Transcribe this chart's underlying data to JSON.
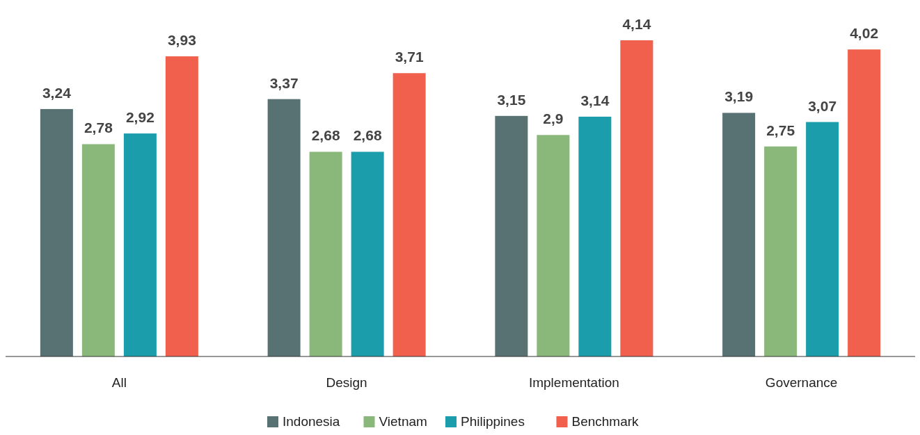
{
  "chart_data": {
    "type": "bar",
    "categories": [
      "All",
      "Design",
      "Implementation",
      "Governance"
    ],
    "series": [
      {
        "name": "Indonesia",
        "color": "#587173",
        "values": [
          3.24,
          3.37,
          3.15,
          3.19
        ],
        "value_labels": [
          "3,24",
          "3,37",
          "3,15",
          "3,19"
        ]
      },
      {
        "name": "Vietnam",
        "color": "#8ab87a",
        "values": [
          2.78,
          2.68,
          2.9,
          2.75
        ],
        "value_labels": [
          "2,78",
          "2,68",
          "2,9",
          "2,75"
        ]
      },
      {
        "name": "Philippines",
        "color": "#1b9dab",
        "values": [
          2.92,
          2.68,
          3.14,
          3.07
        ],
        "value_labels": [
          "2,92",
          "2,68",
          "3,14",
          "3,07"
        ]
      },
      {
        "name": "Benchmark",
        "color": "#f0604d",
        "values": [
          3.93,
          3.71,
          4.14,
          4.02
        ],
        "value_labels": [
          "3,93",
          "3,71",
          "4,14",
          "4,02"
        ]
      }
    ],
    "legend": "bottom",
    "grid": false
  }
}
